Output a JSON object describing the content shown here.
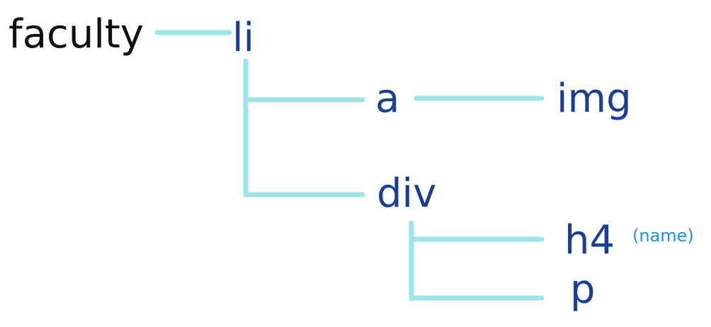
{
  "diagram": {
    "nodes": {
      "faculty": "faculty",
      "li": "li",
      "a": "a",
      "img": "img",
      "div": "div",
      "h4": "h4",
      "h4_note": "(name)",
      "p": "p"
    },
    "colors": {
      "root_text": "#111111",
      "node_text": "#1b3d96",
      "note_text": "#1e90e0",
      "connector": "#9ae6ea"
    }
  }
}
